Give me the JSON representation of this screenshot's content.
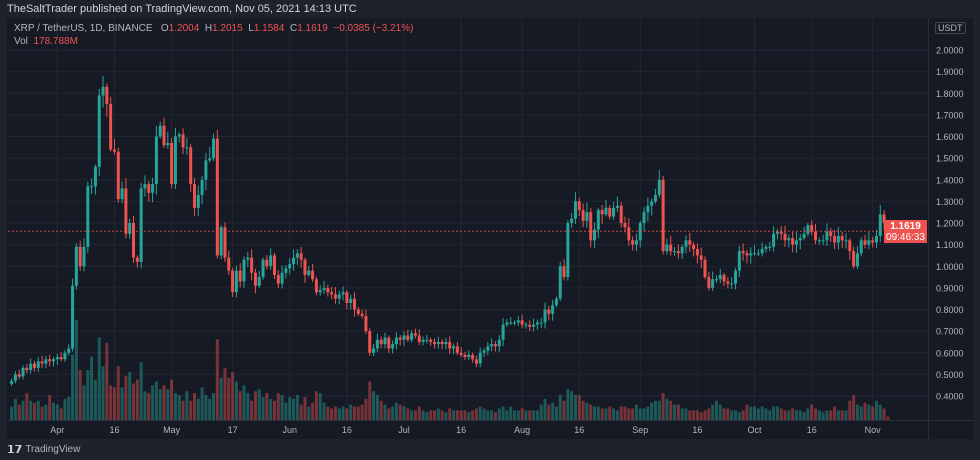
{
  "published": "TheSaltTrader published on TradingView.com, Nov 05, 2021 14:13 UTC",
  "symbol": "XRP / TetherUS, 1D, BINANCE",
  "ohlc": {
    "o_label": "O",
    "o": "1.2004",
    "h_label": "H",
    "h": "1.2015",
    "l_label": "L",
    "l": "1.1584",
    "c_label": "C",
    "c": "1.1619",
    "change": "−0.0385 (−3.21%)"
  },
  "volume": {
    "label": "Vol",
    "value": "178.788M"
  },
  "currency": "USDT",
  "last_price": {
    "price": "1.1619",
    "countdown": "09:46:33"
  },
  "footer": {
    "brand": "TradingView"
  },
  "colors": {
    "up": "#26a69a",
    "down": "#ef5350",
    "background": "#161a25"
  },
  "chart_data": {
    "type": "candlestick",
    "interval": "1D",
    "start_date": "2021-03-20",
    "end_date": "2021-11-05",
    "ylim": [
      0.3,
      2.1
    ],
    "y_ticks": [
      "2.0000",
      "1.9000",
      "1.8000",
      "1.7000",
      "1.6000",
      "1.5000",
      "1.4000",
      "1.3000",
      "1.2000",
      "1.1000",
      "1.0000",
      "0.9000",
      "0.8000",
      "0.7000",
      "0.6000",
      "0.5000",
      "0.4000"
    ],
    "x_ticks": [
      {
        "label": "Apr",
        "date": "2021-04-01"
      },
      {
        "label": "16",
        "date": "2021-04-16"
      },
      {
        "label": "May",
        "date": "2021-05-01"
      },
      {
        "label": "17",
        "date": "2021-05-17"
      },
      {
        "label": "Jun",
        "date": "2021-06-01"
      },
      {
        "label": "16",
        "date": "2021-06-16"
      },
      {
        "label": "Jul",
        "date": "2021-07-01"
      },
      {
        "label": "16",
        "date": "2021-07-16"
      },
      {
        "label": "Aug",
        "date": "2021-08-01"
      },
      {
        "label": "16",
        "date": "2021-08-16"
      },
      {
        "label": "Sep",
        "date": "2021-09-01"
      },
      {
        "label": "16",
        "date": "2021-09-16"
      },
      {
        "label": "Oct",
        "date": "2021-10-01"
      },
      {
        "label": "16",
        "date": "2021-10-16"
      },
      {
        "label": "Nov",
        "date": "2021-11-01"
      }
    ],
    "grid": true,
    "close": [
      0.47,
      0.5,
      0.49,
      0.53,
      0.52,
      0.55,
      0.53,
      0.56,
      0.55,
      0.57,
      0.56,
      0.57,
      0.58,
      0.57,
      0.6,
      0.62,
      0.91,
      1.09,
      1.0,
      1.09,
      1.37,
      1.37,
      1.46,
      1.79,
      1.83,
      1.75,
      1.54,
      1.53,
      1.31,
      1.36,
      1.15,
      1.2,
      1.04,
      1.02,
      1.36,
      1.38,
      1.34,
      1.38,
      1.6,
      1.65,
      1.56,
      1.57,
      1.38,
      1.6,
      1.61,
      1.55,
      1.55,
      1.38,
      1.27,
      1.33,
      1.4,
      1.49,
      1.5,
      1.59,
      1.05,
      1.18,
      1.04,
      0.98,
      0.88,
      0.98,
      0.93,
      1.03,
      1.04,
      0.97,
      0.91,
      0.95,
      1.03,
      1.0,
      1.05,
      0.96,
      0.92,
      0.97,
      0.99,
      1.01,
      1.04,
      1.06,
      1.03,
      0.96,
      0.98,
      0.94,
      0.88,
      0.89,
      0.9,
      0.88,
      0.87,
      0.85,
      0.87,
      0.88,
      0.83,
      0.85,
      0.8,
      0.78,
      0.77,
      0.7,
      0.6,
      0.62,
      0.66,
      0.64,
      0.67,
      0.62,
      0.64,
      0.67,
      0.66,
      0.68,
      0.66,
      0.69,
      0.68,
      0.65,
      0.66,
      0.66,
      0.65,
      0.64,
      0.65,
      0.64,
      0.65,
      0.62,
      0.63,
      0.6,
      0.59,
      0.58,
      0.59,
      0.57,
      0.55,
      0.6,
      0.61,
      0.63,
      0.64,
      0.63,
      0.66,
      0.73,
      0.74,
      0.74,
      0.74,
      0.75,
      0.73,
      0.73,
      0.72,
      0.73,
      0.74,
      0.74,
      0.8,
      0.78,
      0.82,
      0.85,
      1.0,
      0.95,
      1.2,
      1.22,
      1.3,
      1.26,
      1.21,
      1.25,
      1.12,
      1.17,
      1.26,
      1.24,
      1.27,
      1.23,
      1.27,
      1.28,
      1.2,
      1.18,
      1.12,
      1.1,
      1.12,
      1.2,
      1.25,
      1.28,
      1.3,
      1.33,
      1.4,
      1.07,
      1.1,
      1.07,
      1.07,
      1.06,
      1.09,
      1.12,
      1.1,
      1.08,
      1.05,
      1.03,
      0.95,
      0.9,
      0.94,
      0.94,
      0.96,
      0.93,
      0.92,
      0.92,
      0.98,
      1.07,
      1.06,
      1.05,
      1.06,
      1.06,
      1.06,
      1.08,
      1.09,
      1.09,
      1.15,
      1.16,
      1.15,
      1.12,
      1.13,
      1.1,
      1.12,
      1.13,
      1.15,
      1.19,
      1.16,
      1.12,
      1.12,
      1.12,
      1.16,
      1.14,
      1.11,
      1.14,
      1.12,
      1.12,
      1.07,
      1.0,
      1.06,
      1.12,
      1.1,
      1.12,
      1.11,
      1.14,
      1.24,
      1.2004,
      1.1619
    ],
    "volume_m": [
      700,
      1100,
      800,
      1000,
      1400,
      1000,
      900,
      1000,
      700,
      800,
      1300,
      900,
      800,
      600,
      1100,
      1200,
      3400,
      5200,
      2600,
      1800,
      2600,
      3300,
      2100,
      4300,
      2800,
      4000,
      1800,
      1700,
      2800,
      1700,
      2300,
      2500,
      1900,
      2100,
      3000,
      1500,
      1400,
      1800,
      2000,
      1600,
      1800,
      1600,
      2100,
      1400,
      1300,
      1000,
      1500,
      1000,
      1400,
      1100,
      1700,
      1300,
      1100,
      1400,
      4200,
      2200,
      2700,
      2200,
      2500,
      2000,
      1500,
      1800,
      1400,
      1000,
      1500,
      1600,
      1200,
      1400,
      1100,
      1000,
      1400,
      1300,
      900,
      1200,
      1100,
      1300,
      800,
      1200,
      700,
      900,
      1500,
      1400,
      900,
      700,
      600,
      700,
      600,
      700,
      600,
      800,
      700,
      700,
      800,
      1100,
      2000,
      1500,
      1300,
      1000,
      800,
      600,
      700,
      900,
      800,
      700,
      600,
      500,
      500,
      700,
      500,
      400,
      500,
      500,
      600,
      500,
      400,
      600,
      500,
      500,
      500,
      500,
      400,
      500,
      600,
      700,
      600,
      500,
      500,
      400,
      600,
      700,
      500,
      700,
      500,
      500,
      600,
      500,
      500,
      500,
      500,
      800,
      1100,
      800,
      900,
      700,
      1300,
      1000,
      1600,
      1500,
      1300,
      1300,
      1000,
      900,
      800,
      700,
      700,
      600,
      600,
      700,
      600,
      500,
      700,
      700,
      600,
      600,
      800,
      600,
      600,
      700,
      900,
      1000,
      1000,
      1400,
      1100,
      1000,
      800,
      800,
      600,
      600,
      500,
      500,
      500,
      400,
      500,
      600,
      800,
      1000,
      800,
      600,
      600,
      500,
      500,
      400,
      500,
      800,
      700,
      700,
      600,
      700,
      600,
      500,
      700,
      700,
      600,
      500,
      500,
      600,
      500,
      500,
      400,
      600,
      800,
      600,
      500,
      400,
      500,
      500,
      700,
      500,
      500,
      500,
      1000,
      1300,
      800,
      700,
      900,
      800,
      700,
      1000,
      800,
      600,
      178.788
    ],
    "last_bar": {
      "open": 1.2004,
      "high": 1.2015,
      "low": 1.1584,
      "close": 1.1619
    }
  }
}
